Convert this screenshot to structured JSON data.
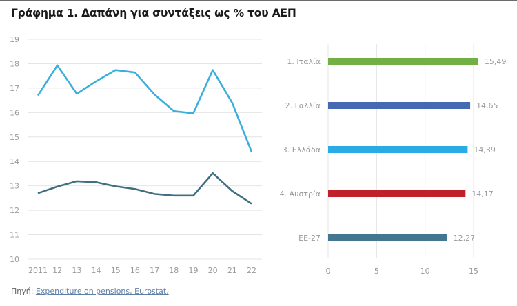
{
  "title": "Γράφημα 1. Δαπάνη για συντάξεις ως % του ΑΕΠ",
  "source": {
    "label": "Πηγή:",
    "link_text": "Expenditure on pensions, Eurostat."
  },
  "chart_data": [
    {
      "type": "line",
      "x": [
        "2011",
        "12",
        "13",
        "14",
        "15",
        "16",
        "17",
        "18",
        "19",
        "20",
        "21",
        "22"
      ],
      "ylim": [
        10,
        19
      ],
      "yticks": [
        10,
        11,
        12,
        13,
        14,
        15,
        16,
        17,
        18,
        19
      ],
      "grid": true,
      "series": [
        {
          "color": "#3aaedc",
          "values": [
            16.7,
            17.93,
            16.77,
            17.28,
            17.74,
            17.64,
            16.74,
            16.06,
            15.97,
            17.74,
            16.4,
            14.39
          ]
        },
        {
          "color": "#3f6f80",
          "values": [
            12.7,
            12.97,
            13.19,
            13.15,
            12.98,
            12.87,
            12.67,
            12.6,
            12.6,
            13.52,
            12.79,
            12.27
          ]
        }
      ]
    },
    {
      "type": "bar",
      "orientation": "horizontal",
      "categories": [
        "1. Ιταλία",
        "2. Γαλλία",
        "3. Ελλάδα",
        "4. Αυστρία",
        "ΕΕ-27"
      ],
      "values": [
        15.49,
        14.65,
        14.39,
        14.17,
        12.27
      ],
      "labels": [
        "15,49",
        "14,65",
        "14,39",
        "14,17",
        "12,27"
      ],
      "colors": [
        "#72b043",
        "#4569b3",
        "#2aabe4",
        "#c0202a",
        "#437790"
      ],
      "xlim": [
        0,
        15.5
      ],
      "xticks": [
        0,
        5,
        10,
        15
      ],
      "grid": true
    }
  ]
}
